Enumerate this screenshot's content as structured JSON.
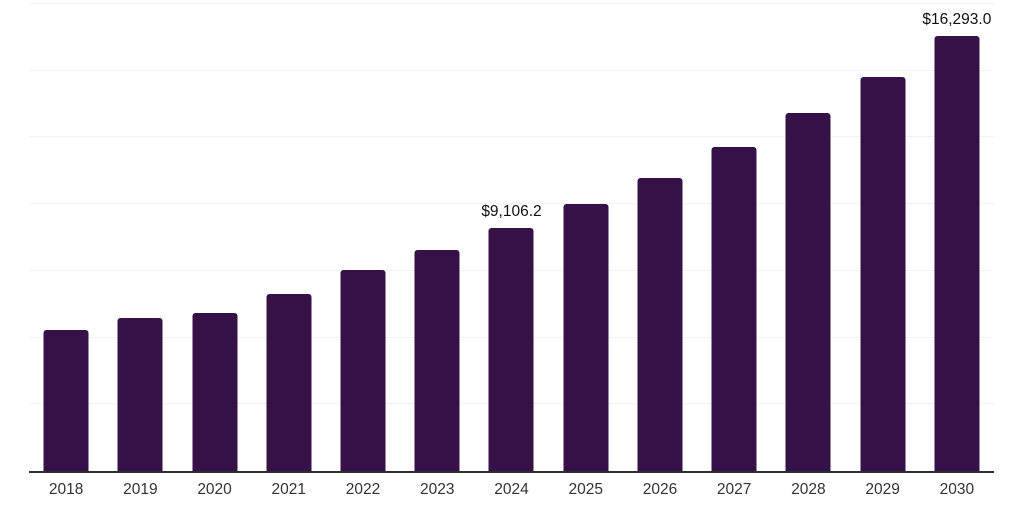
{
  "chart_data": {
    "type": "bar",
    "title": "",
    "xlabel": "",
    "ylabel": "",
    "categories": [
      "2018",
      "2019",
      "2020",
      "2021",
      "2022",
      "2023",
      "2024",
      "2025",
      "2026",
      "2027",
      "2028",
      "2029",
      "2030"
    ],
    "values": [
      5280,
      5750,
      5910,
      6620,
      7530,
      8270,
      9106.2,
      10005,
      10995,
      12125,
      13415,
      14780,
      16293
    ],
    "data_labels": [
      "",
      "",
      "",
      "",
      "",
      "",
      "$9,106.2",
      "",
      "",
      "",
      "",
      "",
      "$16,293.0"
    ],
    "ylim": [
      0,
      17500
    ],
    "gridline_step": 2500,
    "grid": true,
    "legend_position": "none"
  },
  "colors": {
    "bar": "#351148",
    "gridline": "#f2f2f2",
    "axis_line": "#2d2d2d",
    "tick_label": "#333333",
    "data_label": "#111111",
    "background": "#ffffff"
  }
}
